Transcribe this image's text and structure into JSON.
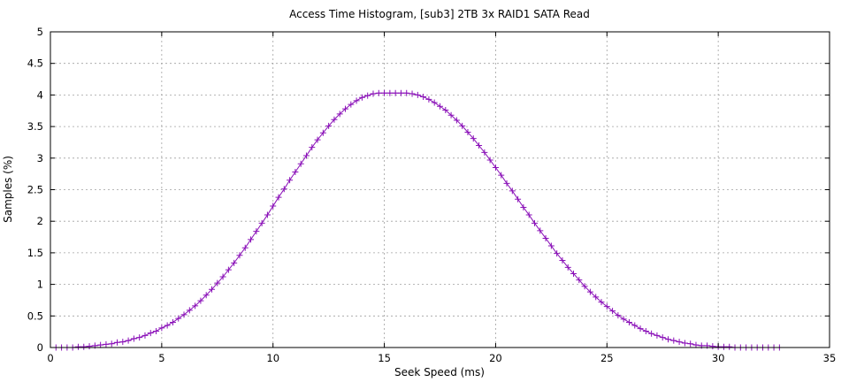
{
  "chart_data": {
    "type": "line",
    "title": "Access Time Histogram, [sub3] 2TB 3x RAID1 SATA Read",
    "xlabel": "Seek Speed (ms)",
    "ylabel": "Samples (%)",
    "xlim": [
      0,
      35
    ],
    "ylim": [
      0,
      5
    ],
    "xticks": [
      "0",
      "5",
      "10",
      "15",
      "20",
      "25",
      "30",
      "35"
    ],
    "yticks": [
      "0",
      "0.5",
      "1",
      "1.5",
      "2",
      "2.5",
      "3",
      "3.5",
      "4",
      "4.5",
      "5"
    ],
    "grid": true,
    "series": [
      {
        "color": "#8a10b8",
        "marker": "plus",
        "x": [
          0.25,
          0.5,
          0.75,
          1,
          1.25,
          1.5,
          1.75,
          2,
          2.25,
          2.5,
          2.75,
          3,
          3.25,
          3.5,
          3.75,
          4,
          4.25,
          4.5,
          4.75,
          5,
          5.25,
          5.5,
          5.75,
          6,
          6.25,
          6.5,
          6.75,
          7,
          7.25,
          7.5,
          7.75,
          8,
          8.25,
          8.5,
          8.75,
          9,
          9.25,
          9.5,
          9.75,
          10,
          10.25,
          10.5,
          10.75,
          11,
          11.25,
          11.5,
          11.75,
          12,
          12.25,
          12.5,
          12.75,
          13,
          13.25,
          13.5,
          13.75,
          14,
          14.25,
          14.5,
          14.75,
          15,
          15.25,
          15.5,
          15.75,
          16,
          16.25,
          16.5,
          16.75,
          17,
          17.25,
          17.5,
          17.75,
          18,
          18.25,
          18.5,
          18.75,
          19,
          19.25,
          19.5,
          19.75,
          20,
          20.25,
          20.5,
          20.75,
          21,
          21.25,
          21.5,
          21.75,
          22,
          22.25,
          22.5,
          22.75,
          23,
          23.25,
          23.5,
          23.75,
          24,
          24.25,
          24.5,
          24.75,
          25,
          25.25,
          25.5,
          25.75,
          26,
          26.25,
          26.5,
          26.75,
          27,
          27.25,
          27.5,
          27.75,
          28,
          28.25,
          28.5,
          28.75,
          29,
          29.25,
          29.5,
          29.75,
          30,
          30.25,
          30.5,
          30.75,
          31,
          31.25,
          31.5,
          31.75,
          32,
          32.25,
          32.5,
          32.75
        ],
        "y": [
          0,
          0,
          0,
          0,
          0.01,
          0.01,
          0.02,
          0.03,
          0.04,
          0.05,
          0.06,
          0.08,
          0.09,
          0.11,
          0.14,
          0.16,
          0.19,
          0.23,
          0.26,
          0.31,
          0.35,
          0.4,
          0.46,
          0.52,
          0.59,
          0.66,
          0.74,
          0.83,
          0.92,
          1.02,
          1.12,
          1.23,
          1.34,
          1.46,
          1.58,
          1.71,
          1.84,
          1.97,
          2.1,
          2.24,
          2.38,
          2.51,
          2.65,
          2.78,
          2.91,
          3.04,
          3.17,
          3.29,
          3.4,
          3.51,
          3.61,
          3.7,
          3.78,
          3.85,
          3.91,
          3.96,
          3.99,
          4.02,
          4.03,
          4.03,
          4.03,
          4.03,
          4.03,
          4.03,
          4.02,
          4.0,
          3.97,
          3.93,
          3.88,
          3.82,
          3.76,
          3.68,
          3.6,
          3.51,
          3.41,
          3.31,
          3.2,
          3.09,
          2.97,
          2.85,
          2.73,
          2.6,
          2.48,
          2.35,
          2.22,
          2.1,
          1.97,
          1.85,
          1.73,
          1.61,
          1.49,
          1.38,
          1.27,
          1.17,
          1.07,
          0.97,
          0.88,
          0.8,
          0.72,
          0.65,
          0.58,
          0.51,
          0.45,
          0.4,
          0.35,
          0.3,
          0.26,
          0.22,
          0.19,
          0.16,
          0.13,
          0.11,
          0.09,
          0.07,
          0.06,
          0.04,
          0.03,
          0.03,
          0.02,
          0.01,
          0.01,
          0.01,
          0,
          0,
          0,
          0,
          0,
          0,
          0,
          0,
          0
        ]
      }
    ]
  }
}
